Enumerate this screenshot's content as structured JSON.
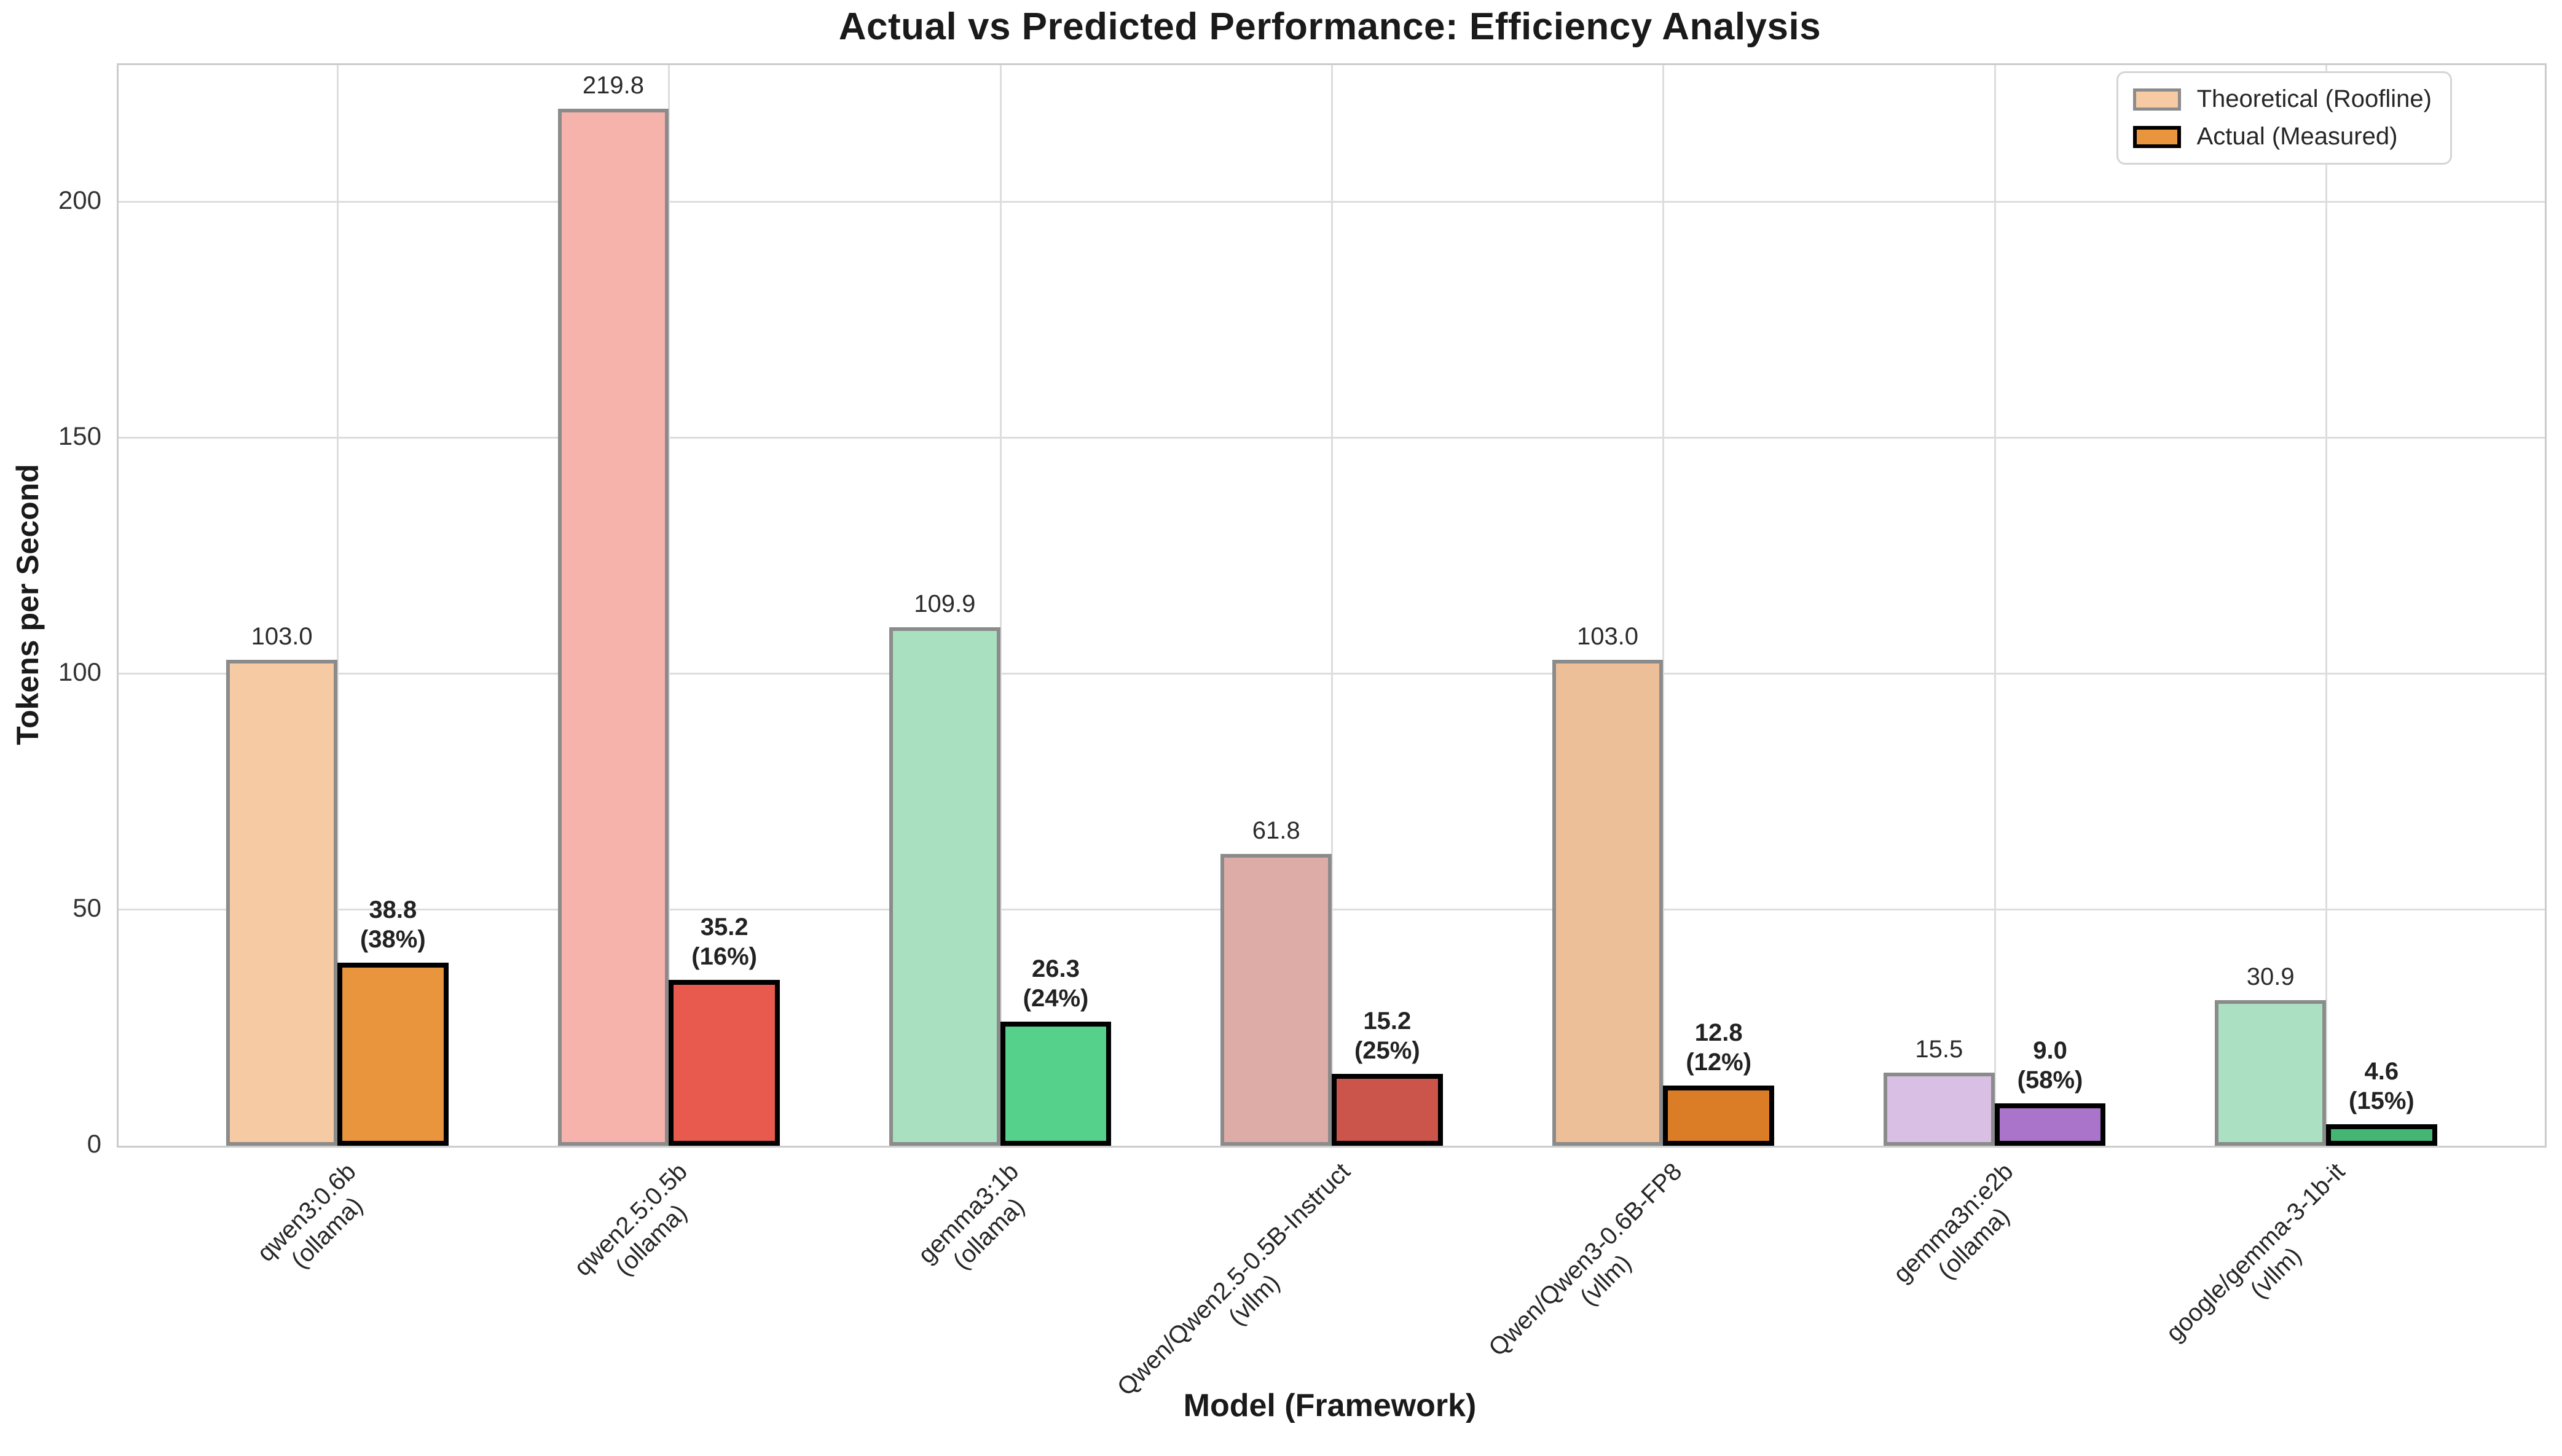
{
  "chart_data": {
    "type": "bar",
    "title": "Actual vs Predicted Performance: Efficiency Analysis",
    "xlabel": "Model (Framework)",
    "ylabel": "Tokens per Second",
    "ylim": [
      0,
      229
    ],
    "yticks": [
      0,
      50,
      100,
      150,
      200
    ],
    "grid": true,
    "legend": {
      "position": "upper right",
      "entries": [
        {
          "label": "Theoretical (Roofline)",
          "fill": "#F6CBA4",
          "border": "#8B8B8B"
        },
        {
          "label": "Actual (Measured)",
          "fill": "#E9953E",
          "border": "#000000"
        }
      ]
    },
    "series_names": [
      "Theoretical (Roofline)",
      "Actual (Measured)"
    ],
    "groups": [
      {
        "model": "qwen3:0.6b",
        "framework": "(ollama)",
        "theoretical": 103.0,
        "theoretical_label": "103.0",
        "actual": 38.8,
        "actual_label": "38.8",
        "efficiency_label": "(38%)",
        "theoretical_color": "#F6CBA4",
        "actual_color": "#E9953E"
      },
      {
        "model": "qwen2.5:0.5b",
        "framework": "(ollama)",
        "theoretical": 219.8,
        "theoretical_label": "219.8",
        "actual": 35.2,
        "actual_label": "35.2",
        "efficiency_label": "(16%)",
        "theoretical_color": "#F6B3AC",
        "actual_color": "#E85A4E"
      },
      {
        "model": "gemma3:1b",
        "framework": "(ollama)",
        "theoretical": 109.9,
        "theoretical_label": "109.9",
        "actual": 26.3,
        "actual_label": "26.3",
        "efficiency_label": "(24%)",
        "theoretical_color": "#A9E0BF",
        "actual_color": "#55D18C"
      },
      {
        "model": "Qwen/Qwen2.5-0.5B-Instruct",
        "framework": "(vllm)",
        "theoretical": 61.8,
        "theoretical_label": "61.8",
        "actual": 15.2,
        "actual_label": "15.2",
        "efficiency_label": "(25%)",
        "theoretical_color": "#DEACA6",
        "actual_color": "#CB544B"
      },
      {
        "model": "Qwen/Qwen3-0.6B-FP8",
        "framework": "(vllm)",
        "theoretical": 103.0,
        "theoretical_label": "103.0",
        "actual": 12.8,
        "actual_label": "12.8",
        "efficiency_label": "(12%)",
        "theoretical_color": "#EDBF98",
        "actual_color": "#DB7C26"
      },
      {
        "model": "gemma3n:e2b",
        "framework": "(ollama)",
        "theoretical": 15.5,
        "theoretical_label": "15.5",
        "actual": 9.0,
        "actual_label": "9.0",
        "efficiency_label": "(58%)",
        "theoretical_color": "#D8BFE3",
        "actual_color": "#A974C9"
      },
      {
        "model": "google/gemma-3-1b-it",
        "framework": "(vllm)",
        "theoretical": 30.9,
        "theoretical_label": "30.9",
        "actual": 4.6,
        "actual_label": "4.6",
        "efficiency_label": "(15%)",
        "theoretical_color": "#ACE0C2",
        "actual_color": "#45B574"
      }
    ],
    "bar_edge": {
      "theoretical": "#8B8B8B",
      "actual": "#000000"
    }
  }
}
